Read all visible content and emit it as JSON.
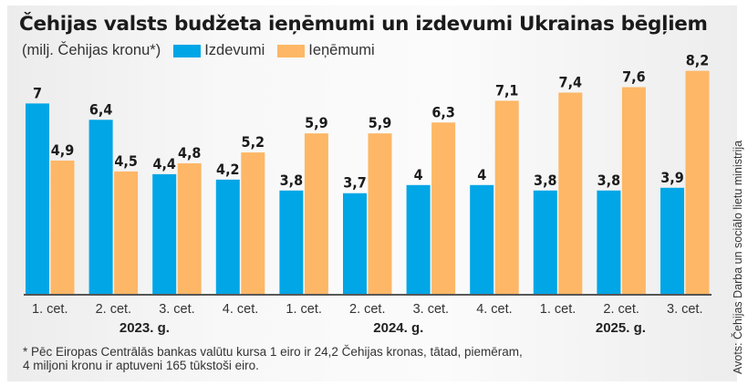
{
  "chart_data": {
    "type": "bar",
    "title": "Čehijas valsts budžeta ieņēmumi un izdevumi Ukrainas bēgļiem",
    "unit_label": "(milj. Čehijas kronu*)",
    "categories": [
      "1. cet.",
      "2. cet.",
      "3. cet.",
      "4. cet.",
      "1. cet.",
      "2. cet.",
      "3. cet.",
      "4. cet.",
      "1. cet.",
      "2. cet.",
      "3. cet."
    ],
    "year_groups": [
      {
        "label": "2023. g.",
        "start": 0,
        "end": 3
      },
      {
        "label": "2024. g.",
        "start": 4,
        "end": 7
      },
      {
        "label": "2025. g.",
        "start": 8,
        "end": 10
      }
    ],
    "series": [
      {
        "name": "Izdevumi",
        "color": "#00a6e6",
        "values": [
          7,
          6.4,
          4.4,
          4.2,
          3.8,
          3.7,
          4,
          4,
          3.8,
          3.8,
          3.9
        ],
        "labels": [
          "7",
          "6,4",
          "4,4",
          "4,2",
          "3,8",
          "3,7",
          "4",
          "4",
          "3,8",
          "3,8",
          "3,9"
        ]
      },
      {
        "name": "Ieņēmumi",
        "color": "#fdb766",
        "values": [
          4.9,
          4.5,
          4.8,
          5.2,
          5.9,
          5.9,
          6.3,
          7.1,
          7.4,
          7.6,
          8.2
        ],
        "labels": [
          "4,9",
          "4,5",
          "4,8",
          "5,2",
          "5,9",
          "5,9",
          "6,3",
          "7,1",
          "7,4",
          "7,6",
          "8,2"
        ]
      }
    ],
    "ylim": [
      0,
      9
    ],
    "grid": false,
    "legend_position": "top-left",
    "xlabel": "",
    "ylabel": ""
  },
  "footnote": {
    "line1": "* Pēc Eiropas Centrālās bankas valūtu kursa 1 eiro ir 24,2 Čehijas kronas, tātad, piemēram,",
    "line2": "4 miljoni kronu ir aptuveni 165 tūkstoši eiro."
  },
  "source": "Avots: Čehijas Darba un sociālo lietu ministrija"
}
